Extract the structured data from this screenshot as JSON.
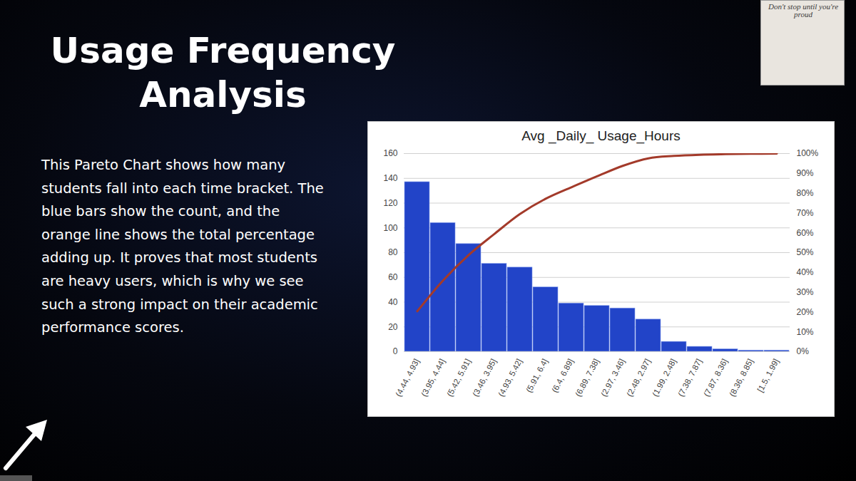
{
  "slide": {
    "heading": "Usage Frequency Analysis",
    "text": "This Pareto Chart shows how many students fall into each time bracket. The blue bars show the count, and the orange line shows the total percentage adding up. It proves that most students are heavy users, which is why we see such a strong impact on their academic performance scores.",
    "logo_text": "Don't stop until you're proud"
  },
  "chart_data": {
    "type": "bar",
    "title": "Avg _Daily_ Usage_Hours",
    "categories": [
      "(4.44, 4.93]",
      "(3.95, 4.44]",
      "(5.42, 5.91]",
      "(3.46, 3.95]",
      "(4.93, 5.42]",
      "(5.91, 6.4]",
      "(6.4, 6.89]",
      "(6.89, 7.38]",
      "(2.97, 3.46]",
      "(2.48, 2.97]",
      "(1.99, 2.48]",
      "(7.38, 7.87]",
      "(7.87, 8.36]",
      "(8.36, 8.85]",
      "[1.5, 1.99]"
    ],
    "series": [
      {
        "type": "bar",
        "color": "#2244c8",
        "values": [
          137,
          104,
          87,
          71,
          68,
          52,
          39,
          37,
          35,
          26,
          8,
          4,
          2,
          1,
          1
        ]
      },
      {
        "type": "line",
        "color": "#a33a2a",
        "axis": "y2",
        "values": [
          20.4,
          35.9,
          48.8,
          59.4,
          69.5,
          77.2,
          83.0,
          88.5,
          93.8,
          97.6,
          98.8,
          99.4,
          99.7,
          99.9,
          100
        ]
      }
    ],
    "ylim": [
      0,
      160
    ],
    "yticks": [
      0,
      20,
      40,
      60,
      80,
      100,
      120,
      140,
      160
    ],
    "y2lim": [
      0,
      100
    ],
    "y2ticks": [
      {
        "value": 0,
        "label": "0%"
      },
      {
        "value": 10,
        "label": "10%"
      },
      {
        "value": 20,
        "label": "20%"
      },
      {
        "value": 30,
        "label": "30%"
      },
      {
        "value": 40,
        "label": "40%"
      },
      {
        "value": 50,
        "label": "50%"
      },
      {
        "value": 60,
        "label": "60%"
      },
      {
        "value": 70,
        "label": "70%"
      },
      {
        "value": 80,
        "label": "80%"
      },
      {
        "value": 90,
        "label": "90%"
      },
      {
        "value": 100,
        "label": "100%"
      }
    ],
    "grid": true
  }
}
